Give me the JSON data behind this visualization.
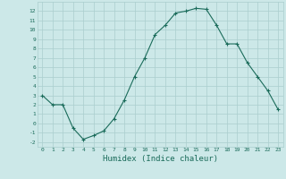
{
  "x": [
    0,
    1,
    2,
    3,
    4,
    5,
    6,
    7,
    8,
    9,
    10,
    11,
    12,
    13,
    14,
    15,
    16,
    17,
    18,
    19,
    20,
    21,
    22,
    23
  ],
  "y": [
    3,
    2,
    2,
    -0.5,
    -1.7,
    -1.3,
    -0.8,
    0.5,
    2.5,
    5.0,
    7.0,
    9.5,
    10.5,
    11.8,
    12.0,
    12.3,
    12.2,
    10.5,
    8.5,
    8.5,
    6.5,
    5.0,
    3.5,
    1.5
  ],
  "line_color": "#1a6b5a",
  "marker": "+",
  "marker_size": 3,
  "bg_color": "#cce8e8",
  "grid_color": "#aacece",
  "xlabel": "Humidex (Indice chaleur)",
  "ylim": [
    -2.5,
    13
  ],
  "xlim": [
    -0.5,
    23.5
  ],
  "yticks": [
    -2,
    -1,
    0,
    1,
    2,
    3,
    4,
    5,
    6,
    7,
    8,
    9,
    10,
    11,
    12
  ],
  "xticks": [
    0,
    1,
    2,
    3,
    4,
    5,
    6,
    7,
    8,
    9,
    10,
    11,
    12,
    13,
    14,
    15,
    16,
    17,
    18,
    19,
    20,
    21,
    22,
    23
  ],
  "tick_color": "#1a6b5a",
  "label_color": "#1a6b5a",
  "xlabel_fontsize": 6.5,
  "tick_fontsize": 4.5
}
